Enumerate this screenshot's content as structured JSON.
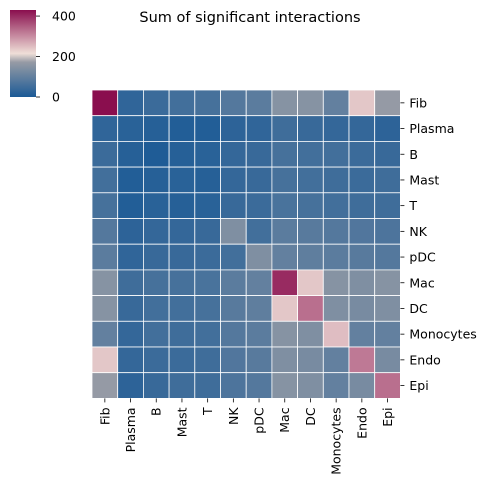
{
  "chart_data": {
    "type": "heatmap",
    "title": "Sum of significant interactions",
    "xlabel": "",
    "ylabel": "",
    "rows": [
      "Fib",
      "Plasma",
      "B",
      "Mast",
      "T",
      "NK",
      "pDC",
      "Mac",
      "DC",
      "Monocytes",
      "Endo",
      "Epi"
    ],
    "cols": [
      "Fib",
      "Plasma",
      "B",
      "Mast",
      "T",
      "NK",
      "pDC",
      "Mac",
      "DC",
      "Monocytes",
      "Endo",
      "Epi"
    ],
    "values": [
      [
        430,
        30,
        45,
        55,
        60,
        80,
        90,
        150,
        150,
        100,
        240,
        170
      ],
      [
        30,
        20,
        15,
        10,
        10,
        25,
        30,
        50,
        40,
        35,
        35,
        25
      ],
      [
        45,
        15,
        5,
        15,
        20,
        35,
        40,
        60,
        55,
        55,
        45,
        40
      ],
      [
        55,
        10,
        15,
        20,
        15,
        35,
        40,
        60,
        55,
        50,
        45,
        50
      ],
      [
        60,
        10,
        20,
        15,
        20,
        40,
        45,
        65,
        60,
        55,
        50,
        50
      ],
      [
        80,
        25,
        35,
        35,
        40,
        140,
        55,
        90,
        85,
        80,
        75,
        70
      ],
      [
        90,
        30,
        40,
        40,
        45,
        55,
        140,
        100,
        95,
        90,
        85,
        80
      ],
      [
        150,
        50,
        60,
        60,
        65,
        90,
        100,
        400,
        240,
        150,
        140,
        150
      ],
      [
        150,
        40,
        55,
        55,
        60,
        85,
        95,
        240,
        330,
        140,
        130,
        140
      ],
      [
        100,
        35,
        55,
        50,
        55,
        80,
        90,
        150,
        140,
        250,
        100,
        100
      ],
      [
        240,
        35,
        45,
        45,
        50,
        75,
        85,
        140,
        130,
        100,
        320,
        130
      ],
      [
        170,
        25,
        40,
        50,
        50,
        70,
        80,
        150,
        140,
        100,
        130,
        330
      ]
    ],
    "colorbar": {
      "min": 0,
      "max": 430,
      "ticks": [
        0,
        200,
        400
      ]
    },
    "colors": {
      "low": "#1b5a96",
      "mid": "#efdfd8",
      "high": "#8a0e4e"
    },
    "grid": false
  }
}
